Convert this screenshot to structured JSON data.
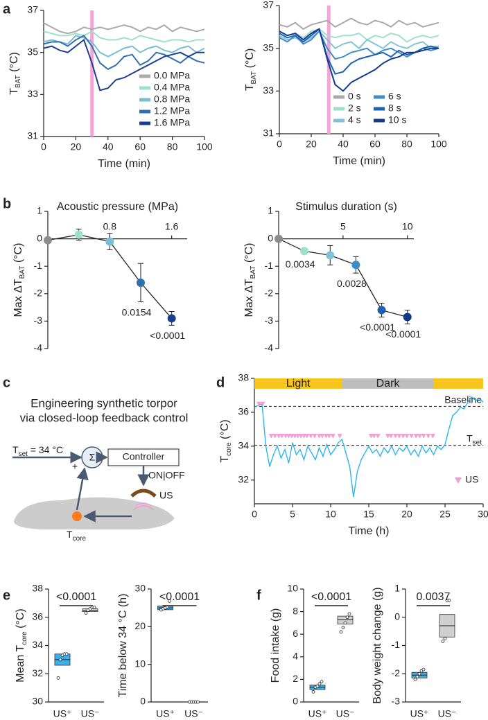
{
  "chart_data": [
    {
      "type": "line",
      "panel": "a",
      "xlabel": "Time (min)",
      "ylabel": [
        "T",
        "BAT",
        " (°C)"
      ],
      "x": [
        0,
        5,
        10,
        15,
        20,
        25,
        30,
        35,
        40,
        45,
        50,
        55,
        60,
        65,
        70,
        75,
        80,
        85,
        90,
        95,
        100
      ],
      "xlim": [
        0,
        100
      ],
      "xticks": [
        0,
        20,
        40,
        60,
        80,
        100
      ],
      "ylim": [
        31,
        37
      ],
      "yticks": [
        31,
        33,
        35,
        37
      ],
      "stimulus": {
        "x": 30,
        "color": "#f2a7d6"
      },
      "legend": "lower right",
      "legend_columns": 1,
      "series": [
        {
          "name": "0.0 MPa",
          "color": "#a9a9a9",
          "values": [
            36.4,
            36.2,
            36.0,
            35.9,
            36.0,
            36.2,
            36.1,
            36.2,
            36.1,
            36.2,
            36.3,
            36.2,
            36.0,
            36.2,
            36.1,
            36.3,
            36.0,
            36.2,
            36.1,
            36.0,
            36.1
          ]
        },
        {
          "name": "0.4 MPa",
          "color": "#9ee0cc",
          "values": [
            36.0,
            35.9,
            35.8,
            35.8,
            35.9,
            35.8,
            36.0,
            35.7,
            35.6,
            35.6,
            35.7,
            35.6,
            35.8,
            35.7,
            35.6,
            35.5,
            35.6,
            35.6,
            35.5,
            35.6,
            35.6
          ]
        },
        {
          "name": "0.8 MPa",
          "color": "#79bfd1",
          "values": [
            35.5,
            35.6,
            35.5,
            35.4,
            35.8,
            35.7,
            35.5,
            35.0,
            34.8,
            35.0,
            35.2,
            35.3,
            35.0,
            35.2,
            35.3,
            35.1,
            35.0,
            35.2,
            35.3,
            35.0,
            35.2
          ]
        },
        {
          "name": "1.2 MPa",
          "color": "#2f6fb0",
          "values": [
            35.4,
            35.5,
            35.5,
            35.3,
            35.6,
            35.8,
            35.3,
            34.5,
            34.2,
            34.4,
            34.8,
            34.9,
            34.4,
            34.6,
            35.0,
            34.9,
            34.7,
            34.5,
            34.8,
            34.6,
            34.5
          ]
        },
        {
          "name": "1.6 MPa",
          "color": "#1b3e8f",
          "values": [
            35.2,
            35.3,
            35.1,
            35.0,
            35.3,
            35.6,
            34.5,
            33.2,
            33.3,
            33.7,
            33.8,
            34.0,
            34.2,
            34.4,
            34.6,
            34.8,
            34.9,
            35.0,
            34.8,
            35.0,
            35.0
          ]
        }
      ]
    },
    {
      "type": "line",
      "xlabel": "Time (min)",
      "ylabel": [
        "T",
        "BAT",
        " (°C)"
      ],
      "x": [
        0,
        5,
        10,
        15,
        20,
        25,
        30,
        35,
        40,
        45,
        50,
        55,
        60,
        65,
        70,
        75,
        80,
        85,
        90,
        95,
        100
      ],
      "xlim": [
        0,
        100
      ],
      "xticks": [
        0,
        20,
        40,
        60,
        80,
        100
      ],
      "ylim": [
        31,
        37
      ],
      "yticks": [
        31,
        33,
        35,
        37
      ],
      "stimulus": {
        "x": 31,
        "color": "#f2a7d6"
      },
      "legend": "lower right",
      "legend_columns": 2,
      "series": [
        {
          "name": "0 s",
          "color": "#a9a9a9",
          "values": [
            36.1,
            36.0,
            36.2,
            35.9,
            36.1,
            36.2,
            36.3,
            36.0,
            36.2,
            36.4,
            36.2,
            36.1,
            36.3,
            36.2,
            36.0,
            36.3,
            36.1,
            36.2,
            36.0,
            36.1,
            36.2
          ]
        },
        {
          "name": "2 s",
          "color": "#9ee0cc",
          "values": [
            35.8,
            35.6,
            35.7,
            35.5,
            35.8,
            35.9,
            35.6,
            35.5,
            35.6,
            35.6,
            35.7,
            35.4,
            35.6,
            35.5,
            35.7,
            35.6,
            35.3,
            35.5,
            35.6,
            35.5,
            35.6
          ]
        },
        {
          "name": "4 s",
          "color": "#7fc3d6",
          "values": [
            35.6,
            35.4,
            35.5,
            35.3,
            35.5,
            35.8,
            35.4,
            35.0,
            35.2,
            35.3,
            35.0,
            35.4,
            35.2,
            35.0,
            35.3,
            35.1,
            35.0,
            35.2,
            35.3,
            35.0,
            35.1
          ]
        },
        {
          "name": "6 s",
          "color": "#3d8cc8",
          "values": [
            35.5,
            35.3,
            35.6,
            35.2,
            35.4,
            35.8,
            35.0,
            34.5,
            34.6,
            34.8,
            34.9,
            35.0,
            34.7,
            34.9,
            35.0,
            34.8,
            34.6,
            34.8,
            35.0,
            34.9,
            35.0
          ]
        },
        {
          "name": "8 s",
          "color": "#2060b0",
          "values": [
            35.7,
            35.5,
            35.6,
            35.3,
            35.6,
            35.9,
            34.6,
            33.8,
            33.9,
            34.3,
            34.5,
            34.6,
            34.7,
            34.8,
            34.6,
            34.9,
            34.7,
            34.8,
            35.0,
            35.1,
            35.0
          ]
        },
        {
          "name": "10 s",
          "color": "#133a8a",
          "values": [
            35.8,
            35.6,
            35.7,
            35.4,
            35.7,
            35.9,
            34.5,
            33.3,
            33.0,
            33.4,
            33.6,
            33.8,
            34.0,
            34.3,
            34.5,
            34.6,
            34.8,
            34.8,
            34.9,
            35.0,
            35.0
          ]
        }
      ]
    },
    {
      "type": "errorbar",
      "panel": "b",
      "xlabel": "Acoustic pressure (MPa)",
      "ylabel": [
        "Max ΔT",
        "BAT",
        " (°C)"
      ],
      "x": [
        0,
        0.4,
        0.8,
        1.2,
        1.6
      ],
      "values": [
        -0.05,
        0.15,
        -0.1,
        -1.6,
        -2.9
      ],
      "errors": [
        0.05,
        0.2,
        0.3,
        0.7,
        0.25
      ],
      "colors": [
        "#8c8c8c",
        "#9ee0cc",
        "#79bfd1",
        "#2f6fb0",
        "#1b3e8f"
      ],
      "point_labels": [
        null,
        null,
        null,
        "0.0154",
        "<0.0001"
      ],
      "xlim": [
        0,
        1.8
      ],
      "xticks": [
        0.8,
        1.6
      ],
      "ylim": [
        -4,
        1
      ],
      "yticks": [
        -4,
        -3,
        -2,
        -1,
        0,
        1
      ]
    },
    {
      "type": "errorbar",
      "xlabel": "Stimulus duration (s)",
      "ylabel": [
        "Max ΔT",
        "BAT",
        " (°C)"
      ],
      "x": [
        0,
        2,
        4,
        6,
        8,
        10
      ],
      "values": [
        0,
        -0.45,
        -0.6,
        -0.95,
        -2.6,
        -2.85
      ],
      "errors": [
        0.03,
        0.1,
        0.35,
        0.3,
        0.25,
        0.25
      ],
      "colors": [
        "#8c8c8c",
        "#9ee0cc",
        "#7fc3d6",
        "#3d8cc8",
        "#2060b0",
        "#133a8a"
      ],
      "point_labels": [
        null,
        "0.0034",
        null,
        "0.0028",
        "<0.0001",
        "<0.0001"
      ],
      "xlim": [
        0,
        10.5
      ],
      "xticks": [
        5,
        10
      ],
      "ylim": [
        -4,
        1
      ],
      "yticks": [
        -4,
        -3,
        -2,
        -1,
        0,
        1
      ]
    },
    {
      "type": "line",
      "panel": "d",
      "xlabel": "Time (h)",
      "ylabel": [
        "T",
        "core",
        " (°C)"
      ],
      "x": [
        0,
        0.5,
        1,
        1.5,
        2,
        2.5,
        3,
        3.5,
        4,
        4.5,
        5,
        5.5,
        6,
        6.5,
        7,
        7.5,
        8,
        8.5,
        9,
        9.5,
        10,
        10.5,
        11,
        11.5,
        12,
        12.5,
        13,
        13.5,
        14,
        14.5,
        15,
        15.5,
        16,
        16.5,
        17,
        17.5,
        18,
        18.5,
        19,
        19.5,
        20,
        20.5,
        21,
        21.5,
        22,
        22.5,
        23,
        23.5,
        24,
        24.5,
        25,
        25.5,
        26,
        26.5,
        27,
        27.5,
        28,
        28.5,
        29,
        29.5,
        30
      ],
      "xlim": [
        0,
        30
      ],
      "xticks": [
        0,
        5,
        10,
        15,
        20,
        25,
        30
      ],
      "ylim": [
        30.6,
        38
      ],
      "yticks": [
        32,
        34,
        36,
        38
      ],
      "series": [
        {
          "color": "#29b6e8",
          "values": [
            36.3,
            36.4,
            36.5,
            34.0,
            32.8,
            33.5,
            34.0,
            33.3,
            33.8,
            33.0,
            34.2,
            33.5,
            33.8,
            33.2,
            34.0,
            33.6,
            33.2,
            33.9,
            33.4,
            34.1,
            33.5,
            33.8,
            34.2,
            34.4,
            33.6,
            32.8,
            31.0,
            32.5,
            33.2,
            33.6,
            34.0,
            33.6,
            33.8,
            33.4,
            33.9,
            33.6,
            34.0,
            33.5,
            33.9,
            33.7,
            34.0,
            33.5,
            33.8,
            33.4,
            34.0,
            33.6,
            33.9,
            33.5,
            34.0,
            33.8,
            34.1,
            35.0,
            35.8,
            36.0,
            36.3,
            36.2,
            36.6,
            36.9,
            36.7,
            36.8,
            36.6
          ]
        }
      ],
      "periods": [
        {
          "label": "Light",
          "start": 0,
          "end": 11.5,
          "color": "#f7c51c"
        },
        {
          "label": "Dark",
          "start": 11.5,
          "end": 23.5,
          "color": "#bdbdbd"
        },
        {
          "label": null,
          "start": 23.5,
          "end": 30,
          "color": "#f7c51c"
        }
      ],
      "reference_lines": [
        {
          "label": [
            "Baseline"
          ],
          "value": 36.35
        },
        {
          "label": [
            "T",
            "set"
          ],
          "value": 34.05
        }
      ],
      "markers": {
        "name": "US",
        "color": "#f29bd6",
        "x": [
          0.6,
          1.1,
          2.2,
          2.7,
          3.2,
          3.6,
          4.1,
          4.5,
          4.9,
          5.3,
          5.7,
          6.1,
          6.5,
          6.9,
          7.4,
          7.9,
          8.5,
          8.9,
          9.4,
          9.8,
          10.3,
          11.2,
          15.3,
          15.7,
          16.2,
          17.5,
          17.9,
          18.5,
          19.0,
          19.5,
          20.0,
          20.6,
          21.2,
          21.7,
          22.2,
          22.8,
          23.4
        ],
        "y": [
          36.5,
          36.5,
          34.6,
          34.6,
          34.6,
          34.6,
          34.6,
          34.6,
          34.6,
          34.6,
          34.6,
          34.6,
          34.6,
          34.6,
          34.6,
          34.6,
          34.6,
          34.6,
          34.6,
          34.6,
          34.6,
          34.6,
          34.6,
          34.6,
          34.6,
          34.6,
          34.6,
          34.6,
          34.6,
          34.6,
          34.6,
          34.6,
          34.6,
          34.6,
          34.6,
          34.6,
          34.6
        ]
      }
    },
    {
      "type": "box",
      "panel": "e",
      "ylabel": [
        "Mean T",
        "core",
        " (°C)"
      ],
      "categories": [
        "US⁺",
        "US⁻"
      ],
      "ylim": [
        30,
        38
      ],
      "yticks": [
        30,
        32,
        34,
        36,
        38
      ],
      "pvalue": "<0.0001",
      "boxes": [
        {
          "q1": 32.6,
          "median": 33.0,
          "q3": 33.4,
          "color": "#3daee9"
        },
        {
          "q1": 36.4,
          "median": 36.5,
          "q3": 36.6,
          "color": "#cfcfcf"
        }
      ],
      "points": [
        [
          31.7,
          33.0,
          33.3,
          33.4,
          33.4
        ],
        [
          36.3,
          36.5,
          36.6,
          36.7,
          36.7
        ]
      ]
    },
    {
      "type": "box",
      "ylabel": [
        "Time below 34 °C (h)"
      ],
      "categories": [
        "US⁺",
        "US⁻"
      ],
      "ylim": [
        0,
        30
      ],
      "yticks": [
        0,
        10,
        20,
        30
      ],
      "pvalue": "<0.0001",
      "boxes": [
        {
          "q1": 24.5,
          "median": 25.0,
          "q3": 25.5,
          "color": "#3daee9"
        },
        {
          "q1": 0,
          "median": 0,
          "q3": 0,
          "color": "#cfcfcf"
        }
      ],
      "points": [
        [
          24.5,
          24.8,
          25.0,
          25.3,
          26.8
        ],
        [
          0,
          0,
          0,
          0,
          0
        ]
      ]
    },
    {
      "type": "box",
      "panel": "f",
      "ylabel": [
        "Food intake (g)"
      ],
      "categories": [
        "US⁺",
        "US⁻"
      ],
      "ylim": [
        0,
        10
      ],
      "yticks": [
        0,
        2,
        4,
        6,
        8,
        10
      ],
      "pvalue": "<0.0001",
      "boxes": [
        {
          "q1": 1.1,
          "median": 1.3,
          "q3": 1.5,
          "color": "#3daee9"
        },
        {
          "q1": 6.9,
          "median": 7.3,
          "q3": 7.6,
          "color": "#cfcfcf"
        }
      ],
      "points": [
        [
          0.9,
          1.3,
          1.4,
          1.6,
          1.8
        ],
        [
          6.2,
          6.6,
          7.0,
          7.5,
          7.8
        ]
      ]
    },
    {
      "type": "box",
      "ylabel": [
        "Body weight change (g)"
      ],
      "categories": [
        "US⁺",
        "US⁻"
      ],
      "ylim": [
        -3,
        1
      ],
      "yticks": [
        -3,
        -2,
        -1,
        0,
        1
      ],
      "pvalue": "0.0037",
      "boxes": [
        {
          "q1": -2.15,
          "median": -2.05,
          "q3": -1.95,
          "color": "#3daee9"
        },
        {
          "q1": -0.7,
          "median": -0.3,
          "q3": 0.1,
          "color": "#cfcfcf"
        }
      ],
      "points": [
        [
          -2.2,
          -2.1,
          -2.0,
          -1.9,
          -1.85
        ],
        [
          -0.85,
          -0.75,
          0.6,
          0.6
        ]
      ]
    }
  ],
  "diagram": {
    "panel": "c",
    "title": [
      "Engineering synthetic torpor",
      "via closed-loop feedback control"
    ],
    "setpoint": [
      "T",
      "set",
      " = 34 °C"
    ],
    "sum": "Σ",
    "plus": "+",
    "minus": "−",
    "controller": "Controller",
    "switch": "ON|OFF",
    "stimulus": "US",
    "sensor": [
      "T",
      "core"
    ]
  }
}
